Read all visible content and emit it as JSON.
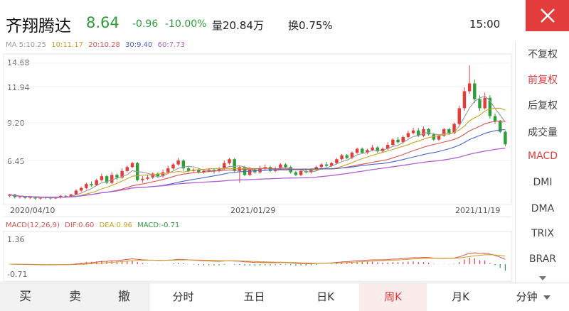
{
  "header": {
    "stock_name": "齐翔腾达",
    "price": "8.64",
    "change": "-0.96",
    "change_pct": "-10.00%",
    "volume_label": "量",
    "volume": "20.84万",
    "turnover_label": "换",
    "turnover": "0.75%",
    "time": "15:00"
  },
  "colors": {
    "up": "#e23c3c",
    "down": "#2e9e3a",
    "ma5": "#9a9a9a",
    "ma10": "#c9a227",
    "ma20": "#d9534f",
    "ma30": "#4a64c8",
    "ma60": "#b15fd0"
  },
  "ma_legend": {
    "ma5": "MA 5:10.25",
    "ma10": "10:11.17",
    "ma20": "20:10.28",
    "ma30": "30:9.40",
    "ma60": "60:7.73"
  },
  "price_axis": [
    "14.68",
    "11.94",
    "9.20",
    "6.45"
  ],
  "dates": [
    "2020/04/10",
    "2021/01/29",
    "2021/11/19"
  ],
  "macd_legend": {
    "title": "MACD(12,26,9)",
    "dif": "DIF:0.60",
    "dea": "DEA:0.96",
    "macd": "MACD:-0.71"
  },
  "macd_axis": [
    "1.36",
    "-0.71"
  ],
  "side_tabs": [
    {
      "label": "不复权",
      "active": false
    },
    {
      "label": "前复权",
      "active": true
    },
    {
      "label": "后复权",
      "active": false
    },
    {
      "label": "成交量",
      "active": false
    },
    {
      "label": "MACD",
      "active": true
    },
    {
      "label": "DMI",
      "active": false
    },
    {
      "label": "DMA",
      "active": false
    },
    {
      "label": "TRIX",
      "active": false
    },
    {
      "label": "BRAR",
      "active": false
    }
  ],
  "bottom_tabs": {
    "buy": "买",
    "sell": "卖",
    "cancel": "撤",
    "intraday": "分时",
    "five_day": "五日",
    "daily": "日K",
    "weekly": "周K",
    "monthly": "月K",
    "minute": "分钟"
  },
  "icons": {
    "close": "close-icon",
    "dropdown": "chevron-down-icon"
  },
  "chart_data": {
    "type": "candlestick",
    "period": "weekly",
    "y_ticks": [
      14.68,
      11.94,
      9.2,
      6.45
    ],
    "candles": [
      [
        4.7,
        4.8,
        4.6,
        4.85
      ],
      [
        4.8,
        4.6,
        4.5,
        4.85
      ],
      [
        4.6,
        4.65,
        4.5,
        4.7
      ],
      [
        4.65,
        4.55,
        4.45,
        4.7
      ],
      [
        4.55,
        4.6,
        4.45,
        4.65
      ],
      [
        4.6,
        4.5,
        4.4,
        4.65
      ],
      [
        4.5,
        4.55,
        4.4,
        4.6
      ],
      [
        4.55,
        4.6,
        4.45,
        4.65
      ],
      [
        4.6,
        4.5,
        4.4,
        4.65
      ],
      [
        4.5,
        4.6,
        4.45,
        4.65
      ],
      [
        4.6,
        4.7,
        4.5,
        4.75
      ],
      [
        4.7,
        4.65,
        4.55,
        4.75
      ],
      [
        4.65,
        4.8,
        4.6,
        4.85
      ],
      [
        4.8,
        5.1,
        4.75,
        5.2
      ],
      [
        5.1,
        5.3,
        5.0,
        5.4
      ],
      [
        5.3,
        5.6,
        5.2,
        5.7
      ],
      [
        5.6,
        5.5,
        5.4,
        5.8
      ],
      [
        5.5,
        5.9,
        5.45,
        6.0
      ],
      [
        5.9,
        6.2,
        5.8,
        6.4
      ],
      [
        6.2,
        5.7,
        5.6,
        6.3
      ],
      [
        5.7,
        6.3,
        5.6,
        6.5
      ],
      [
        6.3,
        6.1,
        5.9,
        6.4
      ],
      [
        6.1,
        6.6,
        6.0,
        6.8
      ],
      [
        6.6,
        6.9,
        6.5,
        7.0
      ],
      [
        6.9,
        7.2,
        6.8,
        7.3
      ],
      [
        7.2,
        5.9,
        5.8,
        7.3
      ],
      [
        5.9,
        6.0,
        5.7,
        6.2
      ],
      [
        6.0,
        6.1,
        5.9,
        6.3
      ],
      [
        6.1,
        6.4,
        6.0,
        6.5
      ],
      [
        6.4,
        6.2,
        6.1,
        6.5
      ],
      [
        6.2,
        6.5,
        6.1,
        6.7
      ],
      [
        6.5,
        6.8,
        6.4,
        7.0
      ],
      [
        6.8,
        7.1,
        6.7,
        7.2
      ],
      [
        7.1,
        7.4,
        7.0,
        7.6
      ],
      [
        7.4,
        6.8,
        6.6,
        7.5
      ],
      [
        6.8,
        6.6,
        6.5,
        7.0
      ],
      [
        6.6,
        6.7,
        6.5,
        6.8
      ],
      [
        6.7,
        6.5,
        6.4,
        6.8
      ],
      [
        6.5,
        6.6,
        6.4,
        6.7
      ],
      [
        6.6,
        6.7,
        6.5,
        6.8
      ],
      [
        6.7,
        6.6,
        6.4,
        6.8
      ],
      [
        6.6,
        6.8,
        6.5,
        6.9
      ],
      [
        6.8,
        7.2,
        6.7,
        7.4
      ],
      [
        7.2,
        7.5,
        7.1,
        7.6
      ],
      [
        7.5,
        6.6,
        6.5,
        7.6
      ],
      [
        6.6,
        6.9,
        5.7,
        7.0
      ],
      [
        6.9,
        6.3,
        6.2,
        7.0
      ],
      [
        6.3,
        6.7,
        6.2,
        6.9
      ],
      [
        6.7,
        6.5,
        6.4,
        6.8
      ],
      [
        6.5,
        6.8,
        6.4,
        7.0
      ],
      [
        6.8,
        6.9,
        6.7,
        7.1
      ],
      [
        6.9,
        6.6,
        6.5,
        7.0
      ],
      [
        6.6,
        6.8,
        6.5,
        6.9
      ],
      [
        6.8,
        7.1,
        6.7,
        7.2
      ],
      [
        7.1,
        6.9,
        6.8,
        7.2
      ],
      [
        6.9,
        6.5,
        6.4,
        7.0
      ],
      [
        6.5,
        6.3,
        6.2,
        6.6
      ],
      [
        6.3,
        6.6,
        6.2,
        6.7
      ],
      [
        6.6,
        6.5,
        6.4,
        6.8
      ],
      [
        6.5,
        6.7,
        6.4,
        6.8
      ],
      [
        6.7,
        6.9,
        6.6,
        7.0
      ],
      [
        6.9,
        7.1,
        6.8,
        7.2
      ],
      [
        7.1,
        7.0,
        6.9,
        7.3
      ],
      [
        7.0,
        7.2,
        6.9,
        7.3
      ],
      [
        7.2,
        7.5,
        7.1,
        7.6
      ],
      [
        7.5,
        7.8,
        7.4,
        7.9
      ],
      [
        7.8,
        7.6,
        7.5,
        7.9
      ],
      [
        7.6,
        8.0,
        7.5,
        8.1
      ],
      [
        8.0,
        8.3,
        7.9,
        8.4
      ],
      [
        8.3,
        8.0,
        7.9,
        8.4
      ],
      [
        8.0,
        8.2,
        7.9,
        8.3
      ],
      [
        8.2,
        8.4,
        8.1,
        8.6
      ],
      [
        8.4,
        8.1,
        8.0,
        8.5
      ],
      [
        8.1,
        8.3,
        8.0,
        8.4
      ],
      [
        8.3,
        8.6,
        8.2,
        8.8
      ],
      [
        8.6,
        9.0,
        8.5,
        9.1
      ],
      [
        9.0,
        8.8,
        8.7,
        9.2
      ],
      [
        8.8,
        9.2,
        8.7,
        9.3
      ],
      [
        9.2,
        9.5,
        9.1,
        9.7
      ],
      [
        9.5,
        9.7,
        9.4,
        9.9
      ],
      [
        9.7,
        9.3,
        9.2,
        9.9
      ],
      [
        9.3,
        9.8,
        9.2,
        10.0
      ],
      [
        9.8,
        9.4,
        9.3,
        9.9
      ],
      [
        9.4,
        9.0,
        8.9,
        9.5
      ],
      [
        9.0,
        9.3,
        8.9,
        9.4
      ],
      [
        9.3,
        9.8,
        9.2,
        9.9
      ],
      [
        9.8,
        9.5,
        9.4,
        9.9
      ],
      [
        9.5,
        10.2,
        9.4,
        10.3
      ],
      [
        10.2,
        11.4,
        10.1,
        11.6
      ],
      [
        11.4,
        12.7,
        11.2,
        13.0
      ],
      [
        12.7,
        13.3,
        12.5,
        14.7
      ],
      [
        13.3,
        12.1,
        11.8,
        13.6
      ],
      [
        12.1,
        11.4,
        11.2,
        12.4
      ],
      [
        11.4,
        12.2,
        11.3,
        12.6
      ],
      [
        12.2,
        10.8,
        10.6,
        12.4
      ],
      [
        10.8,
        10.4,
        10.2,
        11.0
      ],
      [
        10.4,
        9.6,
        9.5,
        10.5
      ],
      [
        9.6,
        8.64,
        8.5,
        9.7
      ]
    ]
  }
}
